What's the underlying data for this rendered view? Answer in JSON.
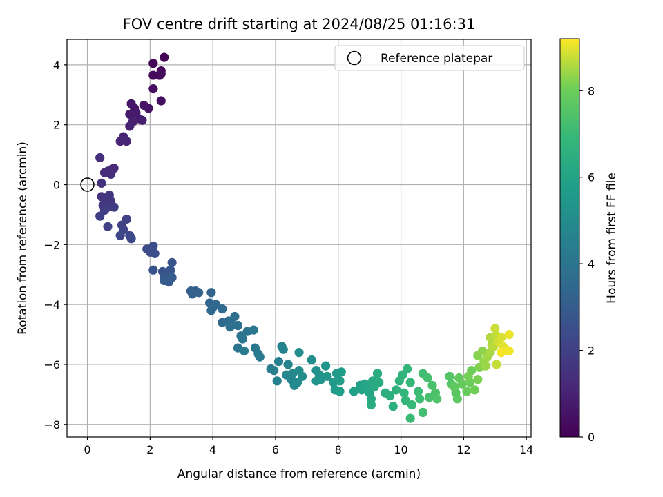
{
  "chart_data": {
    "type": "scatter",
    "title": "FOV centre drift starting at 2024/08/25 01:16:31",
    "xlabel": "Angular distance from reference (arcmin)",
    "ylabel": "Rotation from reference (arcmin)",
    "xlim": [
      -0.65,
      14.15
    ],
    "ylim": [
      -8.42,
      4.85
    ],
    "xticks": [
      0,
      2,
      4,
      6,
      8,
      10,
      12,
      14
    ],
    "yticks": [
      -8,
      -6,
      -4,
      -2,
      0,
      2,
      4
    ],
    "grid": true,
    "legend": {
      "placement": "top-right",
      "label": "Reference platepar"
    },
    "reference_point": {
      "x": 0,
      "y": 0
    },
    "colorbar": {
      "label": "Hours from first FF file",
      "colormap": "viridis",
      "range": [
        0,
        9.2
      ],
      "ticks": [
        0,
        2,
        4,
        6,
        8
      ]
    },
    "series": [
      {
        "points": [
          [
            2.45,
            4.25,
            0.05
          ],
          [
            2.1,
            4.05,
            0.1
          ],
          [
            2.35,
            3.8,
            0.15
          ],
          [
            2.1,
            3.65,
            0.2
          ],
          [
            2.3,
            3.65,
            0.25
          ],
          [
            2.35,
            3.7,
            0.3
          ],
          [
            2.1,
            3.2,
            0.35
          ],
          [
            2.35,
            2.8,
            0.4
          ],
          [
            1.95,
            2.55,
            0.5
          ],
          [
            1.8,
            2.65,
            0.55
          ],
          [
            1.5,
            2.55,
            0.6
          ],
          [
            1.4,
            2.7,
            0.65
          ],
          [
            1.55,
            2.4,
            0.7
          ],
          [
            1.35,
            2.35,
            0.75
          ],
          [
            1.65,
            2.2,
            0.8
          ],
          [
            1.75,
            2.15,
            0.85
          ],
          [
            1.45,
            2.1,
            0.9
          ],
          [
            1.35,
            1.95,
            0.95
          ],
          [
            1.15,
            1.6,
            1.0
          ],
          [
            1.05,
            1.45,
            1.05
          ],
          [
            1.25,
            1.45,
            1.1
          ],
          [
            0.85,
            0.55,
            1.15
          ],
          [
            0.75,
            0.5,
            1.2
          ],
          [
            0.65,
            0.45,
            1.25
          ],
          [
            0.55,
            0.4,
            1.3
          ],
          [
            0.75,
            0.35,
            1.35
          ],
          [
            0.4,
            0.9,
            1.4
          ],
          [
            0.45,
            0.05,
            1.5
          ],
          [
            0.45,
            -0.4,
            1.55
          ],
          [
            0.7,
            -0.35,
            1.6
          ],
          [
            0.55,
            -0.5,
            1.65
          ],
          [
            0.75,
            -0.55,
            1.7
          ],
          [
            0.5,
            -0.7,
            1.75
          ],
          [
            0.65,
            -0.75,
            1.8
          ],
          [
            0.85,
            -0.75,
            1.85
          ],
          [
            0.55,
            -0.85,
            1.9
          ],
          [
            0.4,
            -1.05,
            1.95
          ],
          [
            0.65,
            -1.4,
            2.0
          ],
          [
            1.25,
            -1.15,
            2.05
          ],
          [
            1.1,
            -1.35,
            2.1
          ],
          [
            1.15,
            -1.5,
            2.15
          ],
          [
            1.05,
            -1.7,
            2.2
          ],
          [
            1.35,
            -1.7,
            2.25
          ],
          [
            1.4,
            -1.8,
            2.3
          ],
          [
            1.9,
            -2.15,
            2.4
          ],
          [
            2.1,
            -2.05,
            2.45
          ],
          [
            2.0,
            -2.25,
            2.5
          ],
          [
            2.15,
            -2.3,
            2.55
          ],
          [
            2.1,
            -2.85,
            2.6
          ],
          [
            2.4,
            -2.9,
            2.65
          ],
          [
            2.6,
            -2.9,
            2.7
          ],
          [
            2.7,
            -2.6,
            2.75
          ],
          [
            2.65,
            -2.85,
            2.8
          ],
          [
            2.45,
            -3.05,
            2.85
          ],
          [
            2.55,
            -3.15,
            2.9
          ],
          [
            2.6,
            -3.25,
            2.95
          ],
          [
            2.45,
            -3.2,
            3.0
          ],
          [
            2.7,
            -3.1,
            3.05
          ],
          [
            3.3,
            -3.55,
            3.1
          ],
          [
            3.45,
            -3.55,
            3.15
          ],
          [
            3.35,
            -3.65,
            3.2
          ],
          [
            3.55,
            -3.6,
            3.25
          ],
          [
            3.95,
            -3.6,
            3.3
          ],
          [
            3.9,
            -3.95,
            3.35
          ],
          [
            4.0,
            -4.1,
            3.4
          ],
          [
            4.1,
            -4.0,
            3.45
          ],
          [
            3.95,
            -4.2,
            3.5
          ],
          [
            4.3,
            -4.15,
            3.55
          ],
          [
            4.3,
            -4.6,
            3.6
          ],
          [
            4.5,
            -4.55,
            3.65
          ],
          [
            4.6,
            -4.65,
            3.7
          ],
          [
            4.7,
            -4.4,
            3.75
          ],
          [
            4.55,
            -4.75,
            3.8
          ],
          [
            4.8,
            -4.7,
            3.85
          ],
          [
            4.9,
            -5.05,
            3.9
          ],
          [
            4.8,
            -5.45,
            3.95
          ],
          [
            5.1,
            -4.9,
            4.0
          ],
          [
            4.95,
            -5.15,
            4.05
          ],
          [
            5.3,
            -4.85,
            4.1
          ],
          [
            5.35,
            -5.45,
            4.15
          ],
          [
            5.45,
            -5.65,
            4.2
          ],
          [
            5.5,
            -5.75,
            4.25
          ],
          [
            5.0,
            -5.55,
            4.3
          ],
          [
            5.85,
            -6.15,
            4.4
          ],
          [
            5.95,
            -6.2,
            4.45
          ],
          [
            6.1,
            -5.9,
            4.5
          ],
          [
            6.05,
            -6.55,
            4.55
          ],
          [
            6.2,
            -5.4,
            4.6
          ],
          [
            6.25,
            -5.5,
            4.65
          ],
          [
            6.4,
            -6.0,
            4.7
          ],
          [
            6.35,
            -6.35,
            4.75
          ],
          [
            6.5,
            -6.5,
            4.8
          ],
          [
            6.55,
            -6.3,
            4.85
          ],
          [
            6.6,
            -6.7,
            4.9
          ],
          [
            6.75,
            -6.2,
            4.95
          ],
          [
            6.7,
            -6.6,
            5.0
          ],
          [
            6.85,
            -6.4,
            5.05
          ],
          [
            6.75,
            -5.6,
            5.1
          ],
          [
            7.15,
            -5.85,
            5.15
          ],
          [
            7.3,
            -6.2,
            5.2
          ],
          [
            7.4,
            -6.35,
            5.25
          ],
          [
            7.3,
            -6.55,
            5.3
          ],
          [
            7.45,
            -6.5,
            5.35
          ],
          [
            7.6,
            -6.05,
            5.4
          ],
          [
            7.65,
            -6.4,
            5.45
          ],
          [
            7.85,
            -6.6,
            5.5
          ],
          [
            7.95,
            -6.3,
            5.55
          ],
          [
            7.9,
            -6.85,
            5.6
          ],
          [
            8.05,
            -6.55,
            5.65
          ],
          [
            8.1,
            -6.25,
            5.7
          ],
          [
            8.05,
            -6.9,
            5.75
          ],
          [
            8.5,
            -6.9,
            5.85
          ],
          [
            8.7,
            -6.7,
            5.9
          ],
          [
            8.75,
            -6.85,
            5.95
          ],
          [
            8.85,
            -6.65,
            6.0
          ],
          [
            9.0,
            -6.95,
            6.05
          ],
          [
            8.9,
            -6.75,
            6.1
          ],
          [
            9.05,
            -7.15,
            6.15
          ],
          [
            9.1,
            -6.55,
            6.2
          ],
          [
            9.15,
            -6.75,
            6.25
          ],
          [
            9.3,
            -6.6,
            6.3
          ],
          [
            9.25,
            -6.3,
            6.35
          ],
          [
            9.05,
            -7.35,
            6.4
          ],
          [
            9.5,
            -6.95,
            6.45
          ],
          [
            9.65,
            -7.05,
            6.5
          ],
          [
            9.75,
            -7.4,
            6.55
          ],
          [
            9.85,
            -6.85,
            6.6
          ],
          [
            9.95,
            -6.55,
            6.65
          ],
          [
            10.05,
            -6.35,
            6.7
          ],
          [
            10.2,
            -6.15,
            6.75
          ],
          [
            10.1,
            -6.95,
            6.8
          ],
          [
            10.15,
            -7.2,
            6.85
          ],
          [
            10.3,
            -6.6,
            6.9
          ],
          [
            10.35,
            -7.35,
            6.95
          ],
          [
            10.3,
            -7.8,
            7.0
          ],
          [
            10.55,
            -6.9,
            7.05
          ],
          [
            10.6,
            -7.15,
            7.1
          ],
          [
            10.7,
            -6.3,
            7.15
          ],
          [
            10.7,
            -7.6,
            7.2
          ],
          [
            10.85,
            -6.45,
            7.25
          ],
          [
            10.9,
            -7.1,
            7.3
          ],
          [
            11.0,
            -6.7,
            7.35
          ],
          [
            11.1,
            -6.95,
            7.4
          ],
          [
            11.15,
            -7.15,
            7.45
          ],
          [
            11.55,
            -6.4,
            7.55
          ],
          [
            11.6,
            -6.65,
            7.6
          ],
          [
            11.75,
            -6.95,
            7.65
          ],
          [
            11.8,
            -7.15,
            7.7
          ],
          [
            11.7,
            -6.75,
            7.75
          ],
          [
            11.85,
            -6.45,
            7.8
          ],
          [
            11.95,
            -6.65,
            7.85
          ],
          [
            12.1,
            -6.9,
            7.9
          ],
          [
            12.2,
            -6.6,
            7.95
          ],
          [
            12.25,
            -6.2,
            8.0
          ],
          [
            12.35,
            -6.85,
            8.05
          ],
          [
            12.15,
            -6.4,
            8.1
          ],
          [
            12.45,
            -6.5,
            8.15
          ],
          [
            12.5,
            -6.1,
            8.2
          ],
          [
            12.45,
            -5.7,
            8.25
          ],
          [
            12.6,
            -5.55,
            8.3
          ],
          [
            12.65,
            -5.9,
            8.35
          ],
          [
            12.7,
            -6.05,
            8.4
          ],
          [
            12.75,
            -5.75,
            8.45
          ],
          [
            12.85,
            -5.6,
            8.5
          ],
          [
            12.9,
            -5.35,
            8.55
          ],
          [
            12.85,
            -5.1,
            8.6
          ],
          [
            12.95,
            -5.4,
            8.65
          ],
          [
            13.05,
            -5.05,
            8.7
          ],
          [
            13.05,
            -6.0,
            8.75
          ],
          [
            13.0,
            -4.8,
            8.8
          ],
          [
            13.1,
            -5.25,
            8.85
          ],
          [
            13.2,
            -5.1,
            8.9
          ],
          [
            13.25,
            -5.4,
            8.95
          ],
          [
            13.35,
            -5.5,
            9.0
          ],
          [
            13.45,
            -5.0,
            9.05
          ],
          [
            13.45,
            -5.55,
            9.1
          ],
          [
            13.2,
            -5.6,
            9.15
          ]
        ]
      }
    ]
  }
}
